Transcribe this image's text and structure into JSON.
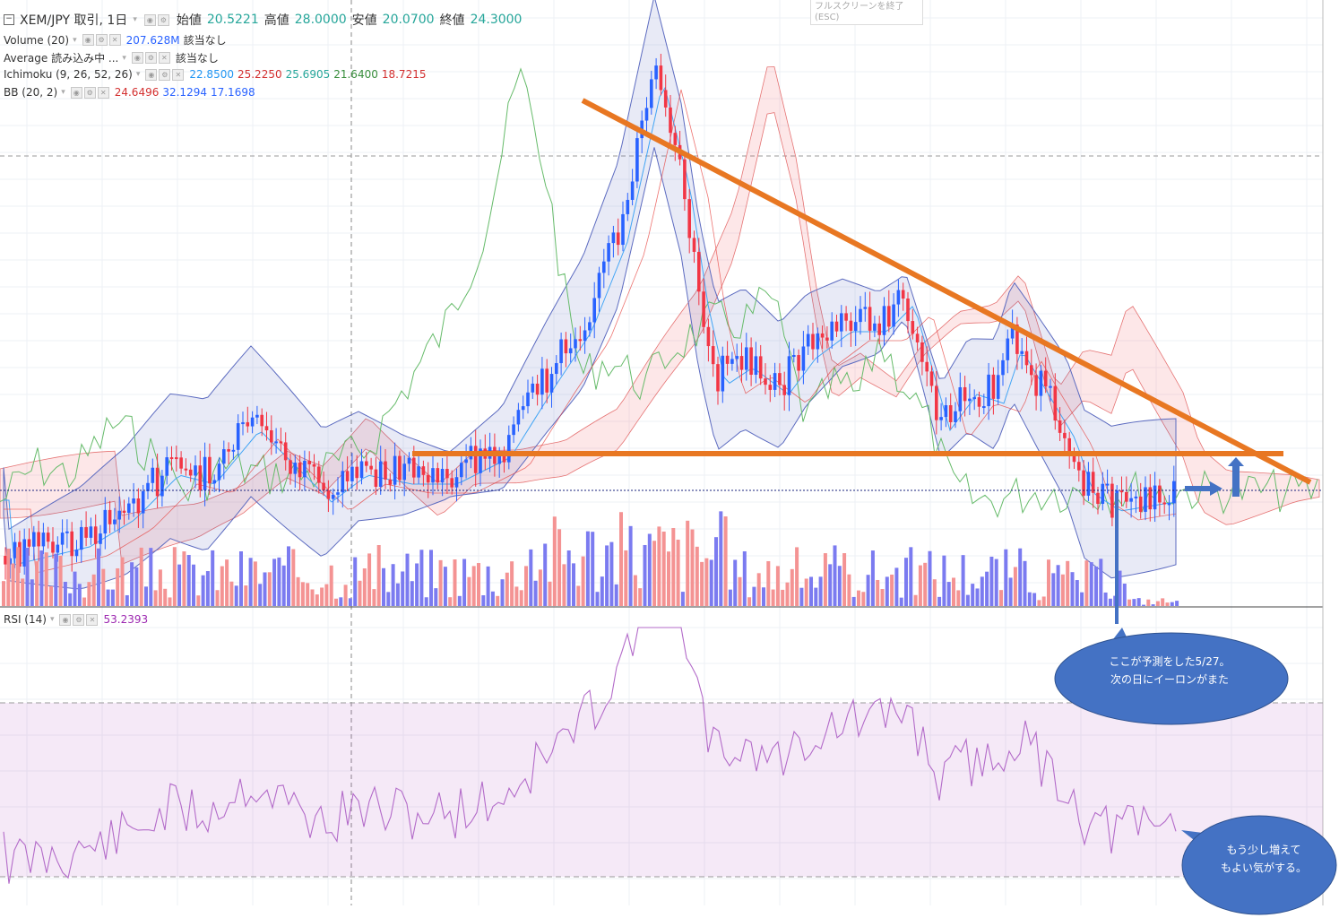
{
  "header": {
    "symbol": "XEM/JPY 取引, 1日",
    "ohlc": [
      {
        "label": "始値",
        "value": "20.5221"
      },
      {
        "label": "高値",
        "value": "28.0000"
      },
      {
        "label": "安値",
        "value": "20.0700"
      },
      {
        "label": "終値",
        "value": "24.3000"
      }
    ]
  },
  "indicators": [
    {
      "name": "Volume (20)",
      "values": [
        {
          "v": "207.628M",
          "color": "#2962ff"
        },
        {
          "v": "該当なし",
          "color": "#333333"
        }
      ]
    },
    {
      "name": "Average 読み込み中 ...",
      "values": [
        {
          "v": "該当なし",
          "color": "#333333"
        }
      ]
    },
    {
      "name": "Ichimoku (9, 26, 52, 26)",
      "values": [
        {
          "v": "22.8500",
          "color": "#2196f3"
        },
        {
          "v": "25.2250",
          "color": "#d32f2f"
        },
        {
          "v": "25.6905",
          "color": "#26a69a"
        },
        {
          "v": "21.6400",
          "color": "#388e3c"
        },
        {
          "v": "18.7215",
          "color": "#d32f2f"
        }
      ]
    },
    {
      "name": "BB (20, 2)",
      "values": [
        {
          "v": "24.6496",
          "color": "#d32f2f"
        },
        {
          "v": "32.1294",
          "color": "#2962ff"
        },
        {
          "v": "17.1698",
          "color": "#2962ff"
        }
      ]
    }
  ],
  "rsi": {
    "name": "RSI (14)",
    "value": "53.2393",
    "value_color": "#9c27b0"
  },
  "fullscreen_exit": {
    "label": "フルスクリーンを終了",
    "hint": "(ESC)"
  },
  "annotations": {
    "callout_1": {
      "line1": "ここが予測をした5/27。",
      "line2": "次の日にイーロンがまた"
    },
    "callout_2": {
      "line1": "もう少し増えて",
      "line2": "もよい気がする。"
    }
  },
  "colors": {
    "up": "#2962ff",
    "down": "#f23645",
    "trendline": "#e87722",
    "callout": "#4472c4",
    "rsi": "#9c27b0"
  },
  "icons": [
    "collapse-icon",
    "eye-icon",
    "settings-icon",
    "close-icon",
    "caret-down-icon",
    "arrow-right-icon",
    "arrow-up-icon"
  ]
}
